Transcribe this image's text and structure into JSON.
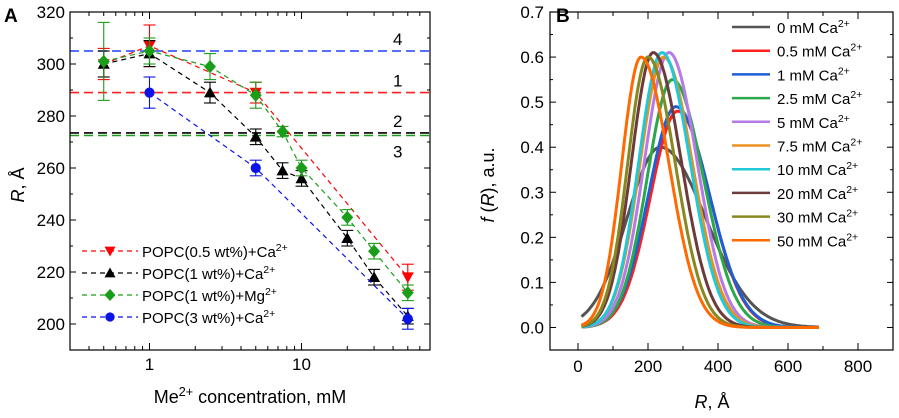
{
  "chart_data": [
    {
      "panel": "A",
      "type": "scatter",
      "xscale": "log",
      "xlim": [
        0.3,
        70
      ],
      "ylim": [
        190,
        320
      ],
      "xticks": [
        {
          "value": 1,
          "label": "1"
        },
        {
          "value": 10,
          "label": "10"
        }
      ],
      "yticks": [
        200,
        220,
        240,
        260,
        280,
        300,
        320
      ],
      "xlabel": {
        "base": "Me",
        "sup": "2+",
        "rest": " concentration, mM"
      },
      "ylabel": {
        "var": "R",
        "unit": ", Å"
      },
      "series": [
        {
          "name": "POPC(0.5 wt%)+Ca",
          "sup": "2+",
          "color": "#ff0000",
          "marker": "triangle-down",
          "x": [
            0.5,
            1,
            5,
            50
          ],
          "y": [
            300,
            307,
            289,
            218
          ],
          "err": [
            6,
            8,
            4,
            5
          ]
        },
        {
          "name": "POPC(1 wt%)+Ca",
          "sup": "2+",
          "color": "#000000",
          "marker": "triangle-up",
          "x": [
            0.5,
            1,
            2.5,
            5,
            7.5,
            10,
            20,
            30,
            50
          ],
          "y": [
            300,
            304,
            289,
            272,
            259,
            256,
            233,
            218,
            203
          ],
          "err": [
            5,
            5,
            4,
            3,
            3,
            3,
            3,
            3,
            3
          ]
        },
        {
          "name": "POPC(1 wt%)+Mg",
          "sup": "2+",
          "color": "#1a9e1a",
          "marker": "diamond",
          "x": [
            0.5,
            1,
            2.5,
            5,
            7.5,
            10,
            20,
            30,
            50
          ],
          "y": [
            301,
            305,
            299,
            288,
            274,
            260,
            241,
            228,
            212
          ],
          "err": [
            15,
            5,
            5,
            5,
            2,
            3,
            3,
            3,
            3
          ]
        },
        {
          "name": "POPC(3 wt%)+Ca",
          "sup": "2+",
          "color": "#0a14e6",
          "marker": "circle",
          "x": [
            1,
            5,
            50
          ],
          "y": [
            289,
            260,
            202
          ],
          "err": [
            6,
            3,
            4
          ]
        }
      ],
      "hlines": [
        {
          "label": "4",
          "y": 305,
          "color": "#2040ff"
        },
        {
          "label": "1",
          "y": 289,
          "color": "#ff2020"
        },
        {
          "label": "2",
          "y": 273.5,
          "color": "#000000"
        },
        {
          "label": "3",
          "y": 272.5,
          "color": "#1a9e1a"
        }
      ]
    },
    {
      "panel": "B",
      "type": "line",
      "xlim": [
        -80,
        900
      ],
      "ylim": [
        -0.05,
        0.7
      ],
      "xticks": [
        0,
        200,
        400,
        600,
        800
      ],
      "yticks": [
        0.0,
        0.1,
        0.2,
        0.3,
        0.4,
        0.5,
        0.6,
        0.7
      ],
      "xlabel": {
        "var": "R",
        "unit": ", Å"
      },
      "ylabel": {
        "var": "f",
        "rest": " (R), a.u."
      },
      "x_range": [
        10,
        690
      ],
      "series": [
        {
          "name": "0 mM Ca",
          "sup": "2+",
          "color": "#555555",
          "peak_x": 235,
          "peak_y": 0.4,
          "sigma_left": 95,
          "sigma_right": 130
        },
        {
          "name": "0.5 mM Ca",
          "sup": "2+",
          "color": "#ff2020",
          "peak_x": 285,
          "peak_y": 0.48,
          "sigma_left": 78,
          "sigma_right": 92
        },
        {
          "name": "1 mM Ca",
          "sup": "2+",
          "color": "#1e5fd6",
          "peak_x": 280,
          "peak_y": 0.49,
          "sigma_left": 78,
          "sigma_right": 95
        },
        {
          "name": "2.5 mM Ca",
          "sup": "2+",
          "color": "#2aa84a",
          "peak_x": 270,
          "peak_y": 0.55,
          "sigma_left": 72,
          "sigma_right": 88
        },
        {
          "name": "5 mM Ca",
          "sup": "2+",
          "color": "#b57be6",
          "peak_x": 260,
          "peak_y": 0.61,
          "sigma_left": 70,
          "sigma_right": 80
        },
        {
          "name": "7.5 mM Ca",
          "sup": "2+",
          "color": "#e89020",
          "peak_x": 245,
          "peak_y": 0.6,
          "sigma_left": 68,
          "sigma_right": 82
        },
        {
          "name": "10 mM Ca",
          "sup": "2+",
          "color": "#20c8d8",
          "peak_x": 240,
          "peak_y": 0.61,
          "sigma_left": 66,
          "sigma_right": 80
        },
        {
          "name": "20 mM Ca",
          "sup": "2+",
          "color": "#6e3b3b",
          "peak_x": 215,
          "peak_y": 0.61,
          "sigma_left": 62,
          "sigma_right": 80
        },
        {
          "name": "30 mM Ca",
          "sup": "2+",
          "color": "#888820",
          "peak_x": 200,
          "peak_y": 0.6,
          "sigma_left": 58,
          "sigma_right": 78
        },
        {
          "name": "50 mM Ca",
          "sup": "2+",
          "color": "#ff6a00",
          "peak_x": 180,
          "peak_y": 0.6,
          "sigma_left": 55,
          "sigma_right": 80
        }
      ]
    }
  ]
}
